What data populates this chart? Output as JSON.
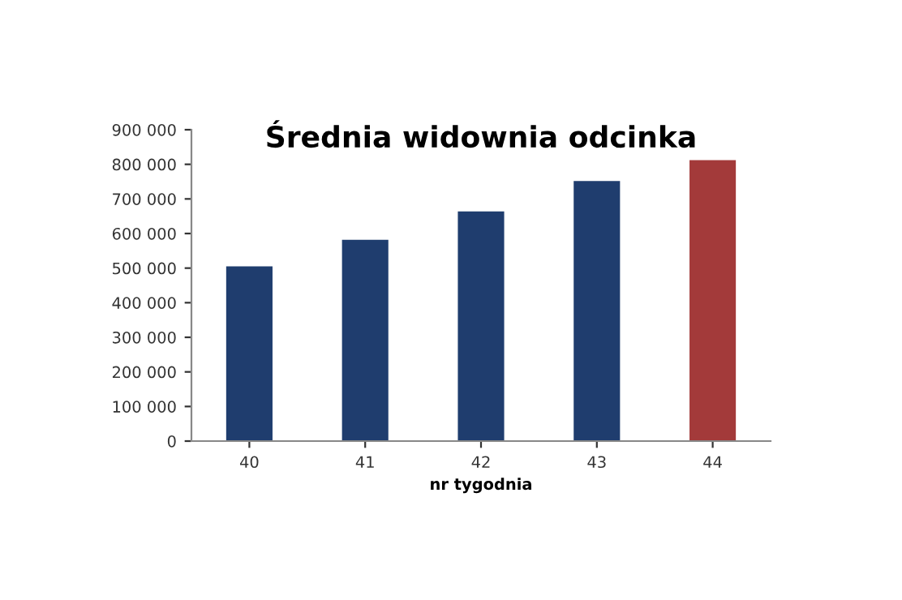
{
  "chart_data": {
    "type": "bar",
    "title": "Średnia widownia odcinka",
    "xlabel": "nr tygodnia",
    "categories": [
      "40",
      "41",
      "42",
      "43",
      "44"
    ],
    "values": [
      505000,
      582000,
      664000,
      752000,
      812000
    ],
    "colors": [
      "#1f3d6e",
      "#1f3d6e",
      "#1f3d6e",
      "#1f3d6e",
      "#a33a3a"
    ],
    "ylim": [
      0,
      900000
    ],
    "yticks": [
      {
        "value": 0,
        "label": "0"
      },
      {
        "value": 100000,
        "label": "100 000"
      },
      {
        "value": 200000,
        "label": "200 000"
      },
      {
        "value": 300000,
        "label": "300 000"
      },
      {
        "value": 400000,
        "label": "400 000"
      },
      {
        "value": 500000,
        "label": "500 000"
      },
      {
        "value": 600000,
        "label": "600 000"
      },
      {
        "value": 700000,
        "label": "700 000"
      },
      {
        "value": 800000,
        "label": "800 000"
      },
      {
        "value": 900000,
        "label": "900 000"
      }
    ],
    "grid": false,
    "legend": false
  }
}
